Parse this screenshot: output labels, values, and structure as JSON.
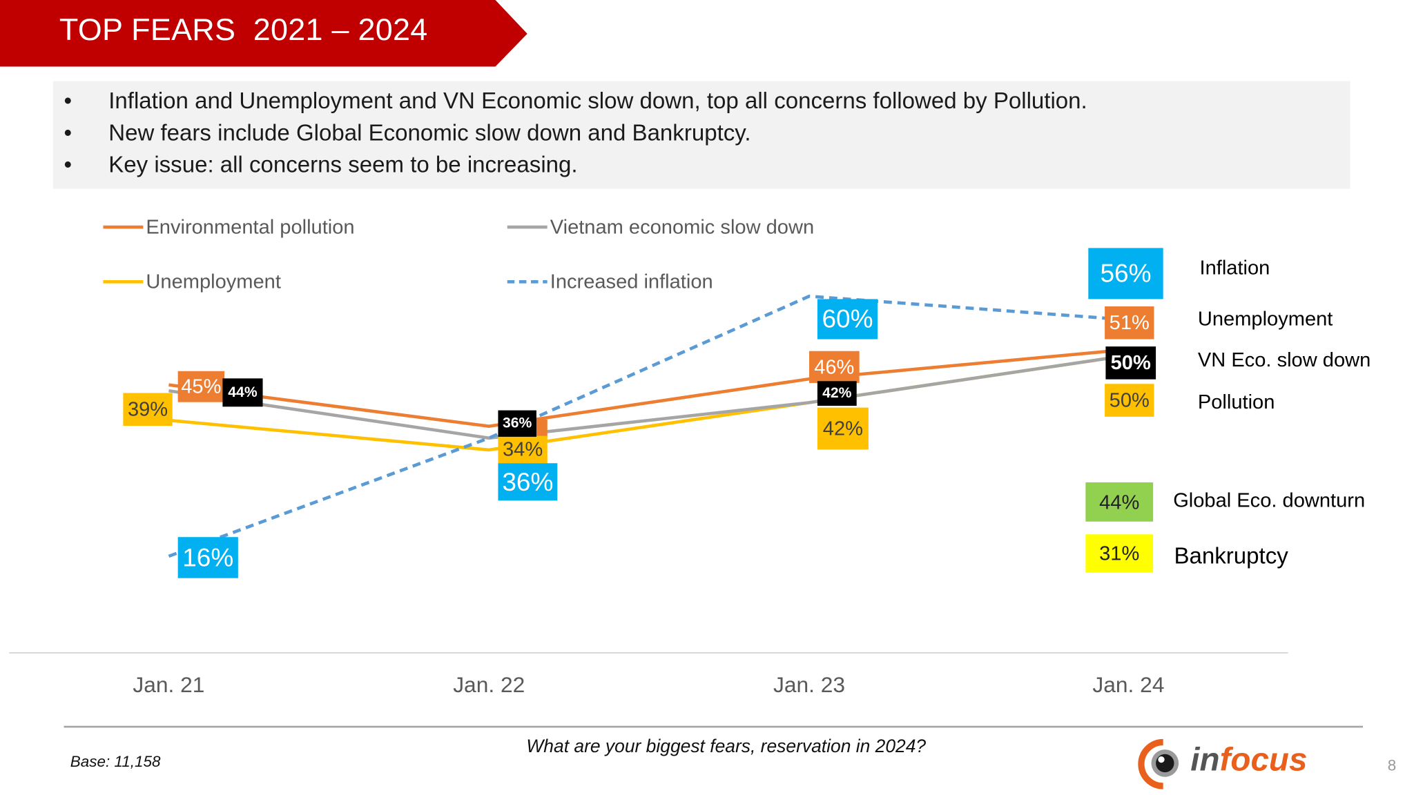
{
  "header": {
    "title": "TOP FEARS  2021 – 2024",
    "banner_color": "#c00000"
  },
  "bullets": [
    "Inflation and Unemployment and VN Economic slow down,  top all concerns followed by Pollution.",
    "New fears include Global Economic slow down and Bankruptcy.",
    "Key issue: all concerns seem to be increasing."
  ],
  "bullet_symbol": "•",
  "chart_data": {
    "type": "line",
    "categories": [
      "Jan. 21",
      "Jan. 22",
      "Jan. 23",
      "Jan. 24"
    ],
    "unit": "%",
    "legend_position": "top",
    "grid": false,
    "series": [
      {
        "name": "Environmental pollution",
        "color": "#ed7d31",
        "label_color": "#ed7d31",
        "label_text_color": "#ffffff",
        "style": "solid",
        "values": [
          45,
          38,
          46,
          51
        ],
        "labels": [
          "45%",
          "",
          "46%",
          "51%"
        ]
      },
      {
        "name": "Vietnam economic slow down",
        "color": "#a5a5a5",
        "label_color": "#000000",
        "label_text_color": "#ffffff",
        "style": "solid",
        "values": [
          44,
          36,
          42,
          50
        ],
        "labels": [
          "44%",
          "36%",
          "42%",
          "50%"
        ]
      },
      {
        "name": "Unemployment",
        "color": "#ffc000",
        "label_color": "#ffc000",
        "label_text_color": "#404040",
        "style": "solid",
        "values": [
          39,
          34,
          42,
          50
        ],
        "labels": [
          "39%",
          "34%",
          "42%",
          "50%"
        ]
      },
      {
        "name": "Increased inflation",
        "color": "#5b9bd5",
        "label_color": "#00b0f0",
        "label_text_color": "#ffffff",
        "style": "dashed",
        "values": [
          16,
          36,
          60,
          56
        ],
        "labels": [
          "16%",
          "36%",
          "60%",
          "56%"
        ]
      }
    ],
    "annotations": [
      {
        "text": "Inflation"
      },
      {
        "text": "Unemployment"
      },
      {
        "text": "VN Eco. slow down"
      },
      {
        "text": "Pollution"
      },
      {
        "text": "Global Eco. downturn",
        "value": "44%",
        "color": "#92d050"
      },
      {
        "text": "Bankruptcy",
        "value": "31%",
        "color": "#ffff00"
      }
    ]
  },
  "footer": {
    "question": "What are your biggest fears, reservation in 2024?",
    "base": "Base: 11,158",
    "page_number": "8",
    "logo_text": {
      "prefix": "in",
      "suffix": "focus"
    }
  }
}
